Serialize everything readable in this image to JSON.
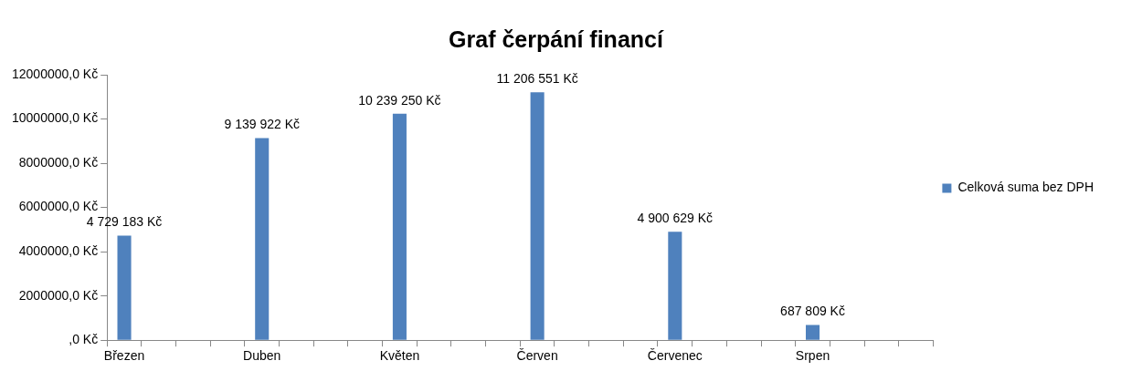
{
  "chart_data": {
    "type": "bar",
    "title": "Graf čerpání financí",
    "categories": [
      "Březen",
      null,
      null,
      null,
      "Duben",
      null,
      null,
      null,
      "Květen",
      null,
      null,
      null,
      "Červen",
      null,
      null,
      null,
      "Červenec",
      null,
      null,
      null,
      "Srpen",
      null,
      null,
      null
    ],
    "series": [
      {
        "name": "Celková suma bez DPH",
        "color": "#4f81bd",
        "values": [
          4729183,
          null,
          null,
          null,
          9139922,
          null,
          null,
          null,
          10239250,
          null,
          null,
          null,
          11206551,
          null,
          null,
          null,
          4900629,
          null,
          null,
          null,
          687809,
          null,
          null,
          null
        ],
        "value_labels": [
          "4 729 183 Kč",
          null,
          null,
          null,
          "9 139 922 Kč",
          null,
          null,
          null,
          "10 239 250 Kč",
          null,
          null,
          null,
          "11 206 551 Kč",
          null,
          null,
          null,
          "4 900 629 Kč",
          null,
          null,
          null,
          "687 809 Kč",
          null,
          null,
          null
        ]
      }
    ],
    "ylim": [
      0,
      12000000
    ],
    "yticks": [
      {
        "value": 0,
        "label": ",0 Kč"
      },
      {
        "value": 2000000,
        "label": "2000000,0 Kč"
      },
      {
        "value": 4000000,
        "label": "4000000,0 Kč"
      },
      {
        "value": 6000000,
        "label": "6000000,0 Kč"
      },
      {
        "value": 8000000,
        "label": "8000000,0 Kč"
      },
      {
        "value": 10000000,
        "label": "10000000,0 Kč"
      },
      {
        "value": 12000000,
        "label": "12000000,0 Kč"
      }
    ],
    "grid": false,
    "legend": "right"
  }
}
